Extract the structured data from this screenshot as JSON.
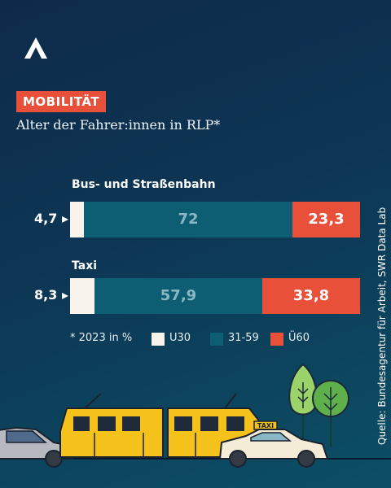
{
  "brand": {
    "logo_icon": "swr-logo-icon"
  },
  "header": {
    "tag": "MOBILITÄT",
    "subtitle": "Alter der Fahrer:innen in RLP*"
  },
  "colors": {
    "u30": "#f8f4ec",
    "mid": "#0d5e73",
    "u60": "#e8503a",
    "mid_text": "#8ab7c4",
    "u60_text": "#ffffff"
  },
  "legend": {
    "note": "* 2023 in %",
    "items": [
      {
        "label": "U30",
        "color": "#f8f4ec"
      },
      {
        "label": "31-59",
        "color": "#0d5e73"
      },
      {
        "label": "Ü60",
        "color": "#e8503a"
      }
    ]
  },
  "source": "Quelle: Bundesagentur für Arbeit, SWR Data Lab",
  "chart_data": {
    "type": "bar",
    "stacked": true,
    "orientation": "horizontal",
    "categories": [
      "Bus- und Straßenbahn",
      "Taxi"
    ],
    "series": [
      {
        "name": "U30",
        "values": [
          4.7,
          8.3
        ],
        "labels": [
          "4,7",
          "8,3"
        ]
      },
      {
        "name": "31-59",
        "values": [
          72,
          57.9
        ],
        "labels": [
          "72",
          "57,9"
        ]
      },
      {
        "name": "Ü60",
        "values": [
          23.3,
          33.8
        ],
        "labels": [
          "23,3",
          "33,8"
        ]
      }
    ],
    "unit": "%",
    "legend": "bottom"
  },
  "scene": {
    "icons": [
      "car-icon",
      "tram-icon",
      "taxi-icon",
      "tree-icon"
    ],
    "taxi_sign": "TAXI"
  }
}
